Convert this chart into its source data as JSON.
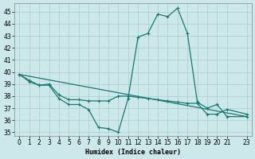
{
  "xlabel": "Humidex (Indice chaleur)",
  "background_color": "#cce8ea",
  "grid_color": "#aacdd0",
  "line_color": "#1a7870",
  "xlim": [
    -0.5,
    23.5
  ],
  "ylim": [
    34.7,
    45.7
  ],
  "yticks": [
    35,
    36,
    37,
    38,
    39,
    40,
    41,
    42,
    43,
    44,
    45
  ],
  "xticks": [
    0,
    1,
    2,
    3,
    4,
    5,
    6,
    7,
    8,
    9,
    10,
    11,
    12,
    13,
    14,
    15,
    16,
    17,
    18,
    19,
    20,
    21,
    23
  ],
  "series": [
    {
      "x": [
        0,
        1,
        2,
        3,
        4,
        5,
        6,
        7,
        8,
        9,
        10,
        11,
        12,
        13,
        14,
        15,
        16,
        17,
        18,
        19,
        20,
        21,
        23
      ],
      "y": [
        39.8,
        39.3,
        38.9,
        38.9,
        37.8,
        37.3,
        37.3,
        36.9,
        35.4,
        35.3,
        35.0,
        37.8,
        42.9,
        43.2,
        44.8,
        44.6,
        45.3,
        43.2,
        37.5,
        37.0,
        37.3,
        36.3,
        36.3
      ]
    },
    {
      "x": [
        0,
        23
      ],
      "y": [
        39.8,
        36.3
      ]
    },
    {
      "x": [
        0,
        1,
        2,
        3,
        4,
        5,
        6,
        7,
        8,
        9,
        10,
        11,
        12,
        13,
        14,
        15,
        16,
        17,
        18,
        19,
        20,
        21,
        23
      ],
      "y": [
        39.8,
        39.2,
        38.9,
        39.0,
        38.1,
        37.7,
        37.7,
        37.6,
        37.6,
        37.6,
        38.0,
        38.0,
        37.9,
        37.8,
        37.7,
        37.6,
        37.5,
        37.4,
        37.4,
        36.5,
        36.5,
        36.9,
        36.5
      ]
    }
  ]
}
